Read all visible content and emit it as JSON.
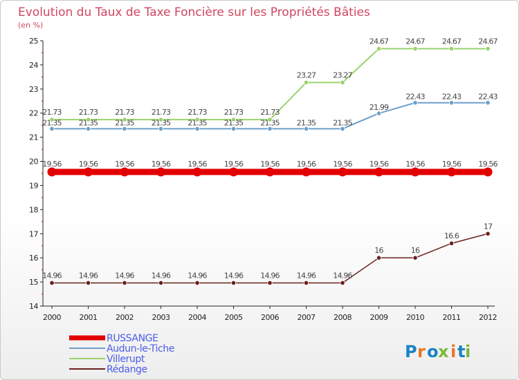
{
  "chart_data": {
    "type": "line",
    "title": "Evolution du Taux de Taxe Foncière sur les Propriétés Bâties",
    "subtitle": "(en %)",
    "xlabel": "",
    "ylabel": "",
    "x": [
      "2000",
      "2001",
      "2002",
      "2003",
      "2004",
      "2005",
      "2006",
      "2007",
      "2008",
      "2009",
      "2010",
      "2011",
      "2012"
    ],
    "ylim": [
      14,
      25
    ],
    "yticks": [
      "14",
      "15",
      "16",
      "17",
      "18",
      "19",
      "20",
      "21",
      "22",
      "23",
      "24",
      "25"
    ],
    "grid": false,
    "legend_position": "bottom-left",
    "series": [
      {
        "name": "RUSSANGE",
        "color": "#e30000",
        "values": [
          19.56,
          19.56,
          19.56,
          19.56,
          19.56,
          19.56,
          19.56,
          19.56,
          19.56,
          19.56,
          19.56,
          19.56,
          19.56
        ],
        "labels": [
          "19.56",
          "19.56",
          "19.56",
          "19.56",
          "19.56",
          "19.56",
          "19.56",
          "19.56",
          "19.56",
          "19.56",
          "19.56",
          "19.56",
          "19.56"
        ]
      },
      {
        "name": "Audun-le-Tiche",
        "color": "#6c9fcb",
        "values": [
          21.35,
          21.35,
          21.35,
          21.35,
          21.35,
          21.35,
          21.35,
          21.35,
          21.35,
          21.99,
          22.43,
          22.43,
          22.43
        ],
        "labels": [
          "21.35",
          "21.35",
          "21.35",
          "21.35",
          "21.35",
          "21.35",
          "21.35",
          "21.35",
          "21.35",
          "21.99",
          "22.43",
          "22.43",
          "22.43"
        ]
      },
      {
        "name": "Villerupt",
        "color": "#9ad26c",
        "values": [
          21.73,
          21.73,
          21.73,
          21.73,
          21.73,
          21.73,
          21.73,
          23.27,
          23.27,
          24.67,
          24.67,
          24.67,
          24.67
        ],
        "labels": [
          "21.73",
          "21.73",
          "21.73",
          "21.73",
          "21.73",
          "21.73",
          "21.73",
          "23.27",
          "23.27",
          "24.67",
          "24.67",
          "24.67",
          "24.67"
        ]
      },
      {
        "name": "Rédange",
        "color": "#6b1f1f",
        "values": [
          14.96,
          14.96,
          14.96,
          14.96,
          14.96,
          14.96,
          14.96,
          14.96,
          14.96,
          16,
          16,
          16.6,
          17
        ],
        "labels": [
          "14.96",
          "14.96",
          "14.96",
          "14.96",
          "14.96",
          "14.96",
          "14.96",
          "14.96",
          "14.96",
          "16",
          "16",
          "16.6",
          "17"
        ]
      }
    ]
  },
  "legend": {
    "text_color": "#4a5de8",
    "items": [
      "RUSSANGE",
      "Audun-le-Tiche",
      "Villerupt",
      "Rédange"
    ]
  },
  "logo": {
    "text": "Proxiti",
    "colors": [
      "#1b83c6",
      "#e87722",
      "#1b83c6",
      "#7bb83a",
      "#e87722",
      "#1b83c6",
      "#7bb83a"
    ]
  }
}
